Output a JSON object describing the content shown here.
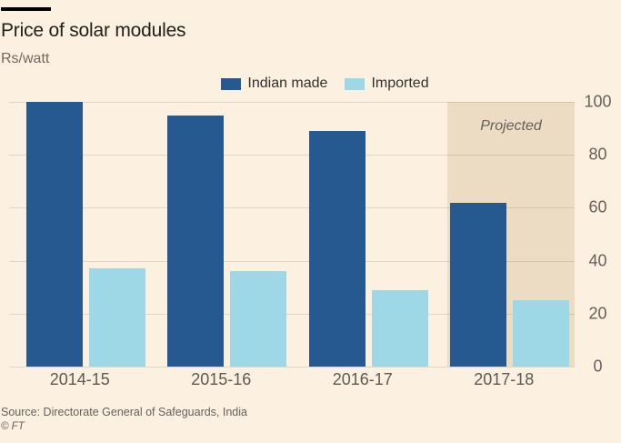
{
  "header": {
    "title": "Price of solar modules",
    "units": "Rs/watt"
  },
  "chart_data": {
    "type": "bar",
    "title": "Price of solar modules",
    "ylabel": "Rs/watt",
    "categories": [
      "2014-15",
      "2015-16",
      "2016-17",
      "2017-18"
    ],
    "series": [
      {
        "key": "indian-made",
        "name": "Indian made",
        "color": "#26598f",
        "values": [
          100,
          95,
          89,
          62
        ]
      },
      {
        "key": "imported",
        "name": "Imported",
        "color": "#9ed7e6",
        "values": [
          37,
          36,
          29,
          25
        ]
      }
    ],
    "ylim": [
      0,
      100
    ],
    "yticks": [
      0,
      20,
      40,
      60,
      80,
      100
    ],
    "grid": true,
    "legend_position": "top-center",
    "annotations": [
      {
        "text": "Projected",
        "category": "2017-18",
        "region_color": "#ecdcc3"
      }
    ]
  },
  "projected": {
    "label": "Projected",
    "region_color": "#ecdcc3"
  },
  "footer": {
    "source": "Source: Directorate General of Safeguards, India",
    "copyright": "© FT"
  },
  "colors": {
    "background": "#fcf0e0",
    "title_text": "#21201e",
    "muted_text": "#66605c",
    "gridline": "rgba(102,92,70,0.18)"
  }
}
